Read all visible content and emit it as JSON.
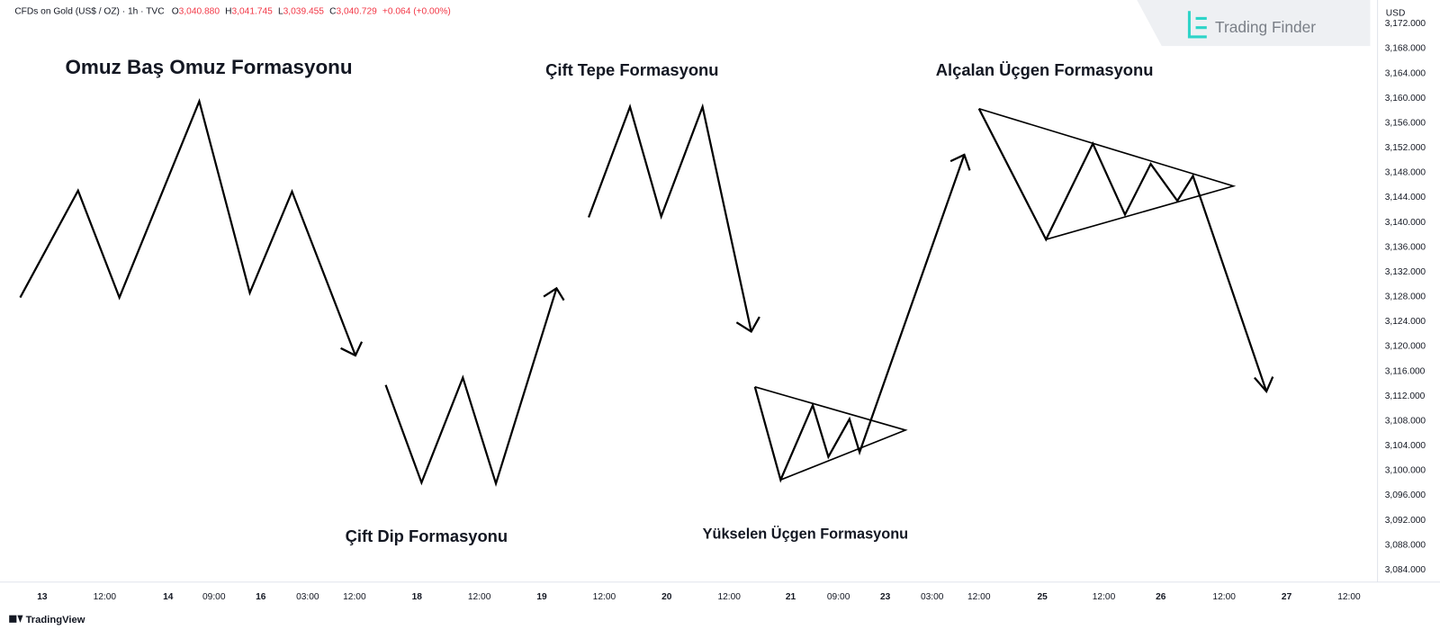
{
  "header": {
    "symbol": "CFDs on Gold (US$ / OZ) · 1h · TVC",
    "ohlc": [
      {
        "label": "O",
        "value": "3,040.880"
      },
      {
        "label": "H",
        "value": "3,041.745"
      },
      {
        "label": "L",
        "value": "3,039.455"
      },
      {
        "label": "C",
        "value": "3,040.729"
      }
    ],
    "change": "+0.064 (+0.00%)"
  },
  "brand": "Trading Finder",
  "footer": "TradingView",
  "price_axis": {
    "currency": "USD",
    "ticks": [
      "3,172.000",
      "3,168.000",
      "3,164.000",
      "3,160.000",
      "3,156.000",
      "3,152.000",
      "3,148.000",
      "3,144.000",
      "3,140.000",
      "3,136.000",
      "3,132.000",
      "3,128.000",
      "3,124.000",
      "3,120.000",
      "3,116.000",
      "3,112.000",
      "3,108.000",
      "3,104.000",
      "3,100.000",
      "3,096.000",
      "3,092.000",
      "3,088.000",
      "3,084.000"
    ]
  },
  "time_axis": {
    "ticks": [
      "13",
      "12:00",
      "14",
      "09:00",
      "16",
      "03:00",
      "12:00",
      "18",
      "12:00",
      "19",
      "12:00",
      "20",
      "12:00",
      "21",
      "09:00",
      "23",
      "03:00",
      "12:00",
      "25",
      "12:00",
      "26",
      "12:00",
      "27",
      "12:00"
    ]
  },
  "patterns": {
    "head_and_shoulders": "Omuz Baş Omuz Formasyonu",
    "double_top": "Çift Tepe Formasyonu",
    "descending_triangle": "Alçalan Üçgen Formasyonu",
    "double_bottom": "Çift Dip Formasyonu",
    "ascending_triangle": "Yükselen Üçgen Formasyonu"
  }
}
